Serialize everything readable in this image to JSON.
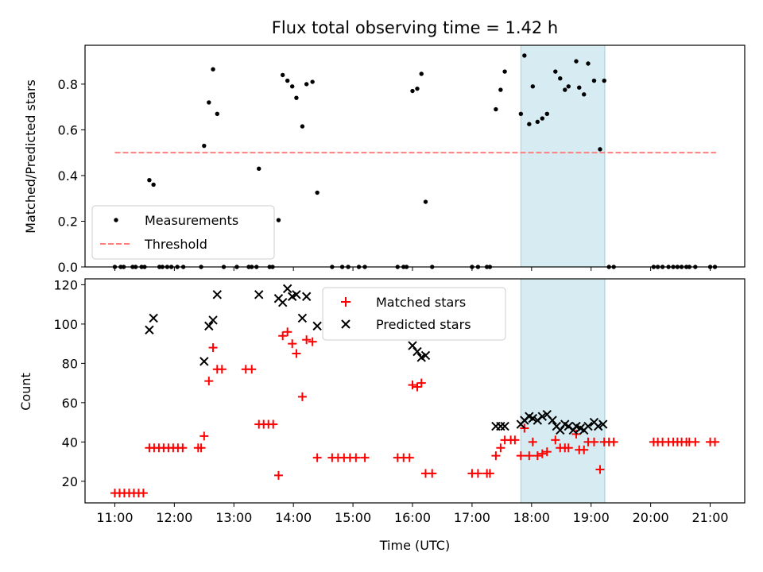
{
  "chart_data": [
    {
      "type": "scatter",
      "title": "Flux total observing time = 1.42 h",
      "xlabel": "",
      "ylabel": "Matched/Predicted stars",
      "xlim": [
        10.5,
        21.58
      ],
      "ylim": [
        0,
        0.97
      ],
      "grid": false,
      "legend_position": "lower-left",
      "highlight_span": [
        17.82,
        19.23
      ],
      "x_ticks": [
        11,
        12,
        13,
        14,
        15,
        16,
        17,
        18,
        19,
        20,
        21
      ],
      "y_ticks": [
        0.0,
        0.2,
        0.4,
        0.6,
        0.8
      ],
      "y_tick_labels": [
        "0.0",
        "0.2",
        "0.4",
        "0.6",
        "0.8"
      ],
      "threshold": {
        "name": "Threshold",
        "value": 0.5,
        "x_range": [
          11.0,
          21.1
        ],
        "color": "#ff7f7f"
      },
      "series": [
        {
          "name": "Measurements",
          "color": "#000000",
          "points": [
            [
              11.0,
              0.0
            ],
            [
              11.1,
              0.0
            ],
            [
              11.15,
              0.0
            ],
            [
              11.3,
              0.0
            ],
            [
              11.35,
              0.0
            ],
            [
              11.45,
              0.0
            ],
            [
              11.5,
              0.0
            ],
            [
              11.58,
              0.38
            ],
            [
              11.65,
              0.36
            ],
            [
              11.75,
              0.0
            ],
            [
              11.8,
              0.0
            ],
            [
              11.88,
              0.0
            ],
            [
              11.95,
              0.0
            ],
            [
              12.05,
              0.0
            ],
            [
              12.15,
              0.0
            ],
            [
              12.45,
              0.0
            ],
            [
              12.5,
              0.53
            ],
            [
              12.58,
              0.72
            ],
            [
              12.65,
              0.865
            ],
            [
              12.72,
              0.67
            ],
            [
              12.83,
              0.0
            ],
            [
              13.05,
              0.0
            ],
            [
              13.25,
              0.0
            ],
            [
              13.3,
              0.0
            ],
            [
              13.38,
              0.0
            ],
            [
              13.42,
              0.43
            ],
            [
              13.6,
              0.0
            ],
            [
              13.65,
              0.0
            ],
            [
              13.75,
              0.205
            ],
            [
              13.82,
              0.84
            ],
            [
              13.9,
              0.815
            ],
            [
              13.98,
              0.79
            ],
            [
              14.05,
              0.74
            ],
            [
              14.15,
              0.615
            ],
            [
              14.22,
              0.8
            ],
            [
              14.32,
              0.81
            ],
            [
              14.4,
              0.325
            ],
            [
              14.65,
              0.0
            ],
            [
              14.82,
              0.0
            ],
            [
              14.92,
              0.0
            ],
            [
              15.1,
              0.0
            ],
            [
              15.2,
              0.0
            ],
            [
              15.75,
              0.0
            ],
            [
              15.85,
              0.0
            ],
            [
              15.9,
              0.0
            ],
            [
              16.0,
              0.77
            ],
            [
              16.08,
              0.78
            ],
            [
              16.15,
              0.845
            ],
            [
              16.22,
              0.285
            ],
            [
              16.33,
              0.0
            ],
            [
              17.0,
              0.0
            ],
            [
              17.1,
              0.0
            ],
            [
              17.25,
              0.0
            ],
            [
              17.3,
              0.0
            ],
            [
              17.4,
              0.69
            ],
            [
              17.48,
              0.775
            ],
            [
              17.55,
              0.855
            ],
            [
              17.82,
              0.67
            ],
            [
              17.88,
              0.925
            ],
            [
              17.96,
              0.625
            ],
            [
              18.02,
              0.79
            ],
            [
              18.1,
              0.635
            ],
            [
              18.18,
              0.65
            ],
            [
              18.26,
              0.67
            ],
            [
              18.4,
              0.855
            ],
            [
              18.48,
              0.825
            ],
            [
              18.56,
              0.775
            ],
            [
              18.62,
              0.79
            ],
            [
              18.75,
              0.9
            ],
            [
              18.8,
              0.785
            ],
            [
              18.88,
              0.755
            ],
            [
              18.95,
              0.89
            ],
            [
              19.05,
              0.815
            ],
            [
              19.15,
              0.515
            ],
            [
              19.22,
              0.815
            ],
            [
              19.3,
              0.0
            ],
            [
              19.38,
              0.0
            ],
            [
              20.05,
              0.0
            ],
            [
              20.12,
              0.0
            ],
            [
              20.2,
              0.0
            ],
            [
              20.3,
              0.0
            ],
            [
              20.38,
              0.0
            ],
            [
              20.45,
              0.0
            ],
            [
              20.52,
              0.0
            ],
            [
              20.6,
              0.0
            ],
            [
              20.65,
              0.0
            ],
            [
              20.75,
              0.0
            ],
            [
              21.0,
              0.0
            ],
            [
              21.08,
              0.0
            ]
          ]
        }
      ]
    },
    {
      "type": "scatter",
      "title": "",
      "xlabel": "Time (UTC)",
      "ylabel": "Count",
      "xlim": [
        10.5,
        21.58
      ],
      "ylim": [
        9,
        123
      ],
      "grid": false,
      "legend_position": "upper-center",
      "highlight_span": [
        17.82,
        19.23
      ],
      "x_ticks": [
        11,
        12,
        13,
        14,
        15,
        16,
        17,
        18,
        19,
        20,
        21
      ],
      "x_tick_labels": [
        "11:00",
        "12:00",
        "13:00",
        "14:00",
        "15:00",
        "16:00",
        "17:00",
        "18:00",
        "19:00",
        "20:00",
        "21:00"
      ],
      "y_ticks": [
        20,
        40,
        60,
        80,
        100,
        120
      ],
      "y_tick_labels": [
        "20",
        "40",
        "60",
        "80",
        "100",
        "120"
      ],
      "series": [
        {
          "name": "Matched stars",
          "marker": "plus",
          "color": "#ff0000",
          "points": [
            [
              11.0,
              14
            ],
            [
              11.08,
              14
            ],
            [
              11.16,
              14
            ],
            [
              11.24,
              14
            ],
            [
              11.32,
              14
            ],
            [
              11.4,
              14
            ],
            [
              11.48,
              14
            ],
            [
              11.58,
              37
            ],
            [
              11.66,
              37
            ],
            [
              11.74,
              37
            ],
            [
              11.82,
              37
            ],
            [
              11.9,
              37
            ],
            [
              11.98,
              37
            ],
            [
              12.06,
              37
            ],
            [
              12.14,
              37
            ],
            [
              12.4,
              37
            ],
            [
              12.45,
              37
            ],
            [
              12.5,
              43
            ],
            [
              12.58,
              71
            ],
            [
              12.65,
              88
            ],
            [
              12.72,
              77
            ],
            [
              12.8,
              77
            ],
            [
              13.2,
              77
            ],
            [
              13.3,
              77
            ],
            [
              13.42,
              49
            ],
            [
              13.5,
              49
            ],
            [
              13.58,
              49
            ],
            [
              13.66,
              49
            ],
            [
              13.75,
              23
            ],
            [
              13.82,
              94
            ],
            [
              13.9,
              96
            ],
            [
              13.98,
              90
            ],
            [
              14.05,
              85
            ],
            [
              14.15,
              63
            ],
            [
              14.22,
              92
            ],
            [
              14.32,
              91
            ],
            [
              14.4,
              32
            ],
            [
              14.65,
              32
            ],
            [
              14.75,
              32
            ],
            [
              14.85,
              32
            ],
            [
              14.95,
              32
            ],
            [
              15.05,
              32
            ],
            [
              15.2,
              32
            ],
            [
              15.75,
              32
            ],
            [
              15.85,
              32
            ],
            [
              15.95,
              32
            ],
            [
              16.0,
              69
            ],
            [
              16.08,
              68
            ],
            [
              16.15,
              70
            ],
            [
              16.22,
              24
            ],
            [
              16.33,
              24
            ],
            [
              17.0,
              24
            ],
            [
              17.1,
              24
            ],
            [
              17.25,
              24
            ],
            [
              17.3,
              24
            ],
            [
              17.4,
              33
            ],
            [
              17.48,
              37
            ],
            [
              17.55,
              41
            ],
            [
              17.65,
              41
            ],
            [
              17.72,
              41
            ],
            [
              17.82,
              33
            ],
            [
              17.88,
              47
            ],
            [
              17.96,
              33
            ],
            [
              18.02,
              40
            ],
            [
              18.1,
              33
            ],
            [
              18.18,
              34
            ],
            [
              18.26,
              35
            ],
            [
              18.4,
              41
            ],
            [
              18.48,
              37
            ],
            [
              18.56,
              37
            ],
            [
              18.62,
              37
            ],
            [
              18.75,
              44
            ],
            [
              18.8,
              36
            ],
            [
              18.88,
              36
            ],
            [
              18.95,
              40
            ],
            [
              19.05,
              40
            ],
            [
              19.15,
              26
            ],
            [
              19.22,
              40
            ],
            [
              19.3,
              40
            ],
            [
              19.38,
              40
            ],
            [
              20.05,
              40
            ],
            [
              20.12,
              40
            ],
            [
              20.2,
              40
            ],
            [
              20.3,
              40
            ],
            [
              20.38,
              40
            ],
            [
              20.45,
              40
            ],
            [
              20.52,
              40
            ],
            [
              20.6,
              40
            ],
            [
              20.65,
              40
            ],
            [
              20.75,
              40
            ],
            [
              21.0,
              40
            ],
            [
              21.08,
              40
            ]
          ]
        },
        {
          "name": "Predicted stars",
          "marker": "x",
          "color": "#000000",
          "points": [
            [
              11.58,
              97
            ],
            [
              11.65,
              103
            ],
            [
              12.5,
              81
            ],
            [
              12.58,
              99
            ],
            [
              12.65,
              102
            ],
            [
              12.72,
              115
            ],
            [
              13.42,
              115
            ],
            [
              13.75,
              113
            ],
            [
              13.82,
              111
            ],
            [
              13.9,
              118
            ],
            [
              13.98,
              114
            ],
            [
              14.05,
              115
            ],
            [
              14.15,
              103
            ],
            [
              14.22,
              114
            ],
            [
              14.4,
              99
            ],
            [
              16.0,
              89
            ],
            [
              16.08,
              86
            ],
            [
              16.15,
              83
            ],
            [
              16.22,
              84
            ],
            [
              17.4,
              48
            ],
            [
              17.48,
              48
            ],
            [
              17.55,
              48
            ],
            [
              17.82,
              49
            ],
            [
              17.88,
              51
            ],
            [
              17.96,
              53
            ],
            [
              18.02,
              52
            ],
            [
              18.1,
              51
            ],
            [
              18.18,
              53
            ],
            [
              18.26,
              54
            ],
            [
              18.35,
              51
            ],
            [
              18.42,
              48
            ],
            [
              18.48,
              46
            ],
            [
              18.56,
              49
            ],
            [
              18.62,
              48
            ],
            [
              18.7,
              46
            ],
            [
              18.75,
              48
            ],
            [
              18.82,
              47
            ],
            [
              18.88,
              46
            ],
            [
              18.95,
              48
            ],
            [
              19.05,
              50
            ],
            [
              19.12,
              48
            ],
            [
              19.2,
              49
            ]
          ]
        }
      ]
    }
  ]
}
